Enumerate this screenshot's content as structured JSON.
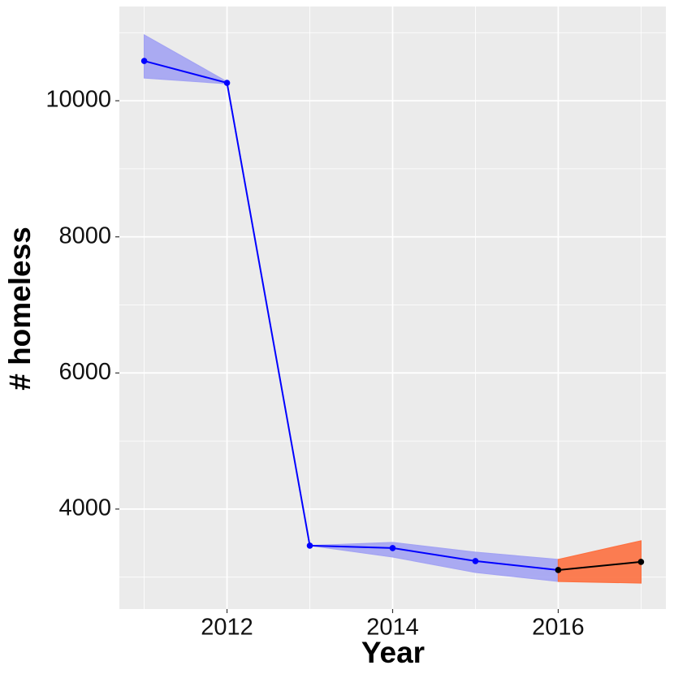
{
  "chart_data": {
    "type": "line",
    "xlabel": "Year",
    "ylabel": "# homeless",
    "xlim": [
      2010.7,
      2017.3
    ],
    "ylim": [
      2531,
      11385
    ],
    "xticks": [
      2012,
      2014,
      2016
    ],
    "yticks": [
      4000,
      6000,
      8000,
      10000
    ],
    "minor_xticks": [
      2011,
      2013,
      2015,
      2017
    ],
    "minor_yticks": [
      3000,
      5000,
      7000,
      9000,
      11000
    ],
    "grid": true,
    "series": [
      {
        "color": "#0000ff",
        "band_color": "#a3a3f3",
        "x": [
          2011,
          2012,
          2013,
          2014,
          2015,
          2016
        ],
        "values": [
          10585,
          10263,
          3463,
          3427,
          3236,
          3104
        ],
        "lower": [
          10334,
          10250,
          3463,
          3296,
          3069,
          2937
        ],
        "upper": [
          10967,
          10280,
          3463,
          3510,
          3367,
          3260
        ]
      },
      {
        "color": "#000000",
        "band_color": "#fd7040",
        "x": [
          2016,
          2017
        ],
        "values": [
          3104,
          3224
        ],
        "lower": [
          2937,
          2913
        ],
        "upper": [
          3260,
          3534
        ]
      }
    ]
  }
}
